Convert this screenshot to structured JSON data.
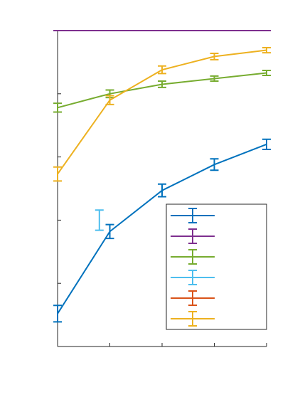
{
  "chart_data": {
    "type": "line",
    "title": "",
    "xlabel": "",
    "ylabel": "",
    "x": [
      1,
      2,
      3,
      4,
      5
    ],
    "xlim": [
      1,
      5
    ],
    "ylim": [
      0,
      5
    ],
    "grid": false,
    "legend_position": "bottom-right",
    "series": [
      {
        "color": "#0072BD",
        "x": [
          1,
          2,
          3,
          4,
          5
        ],
        "values": [
          0.52,
          1.82,
          2.47,
          2.88,
          3.2
        ],
        "errors": [
          0.13,
          0.11,
          0.1,
          0.09,
          0.08
        ]
      },
      {
        "color": "#7E2F8E",
        "x": [
          1,
          2,
          3,
          4,
          5
        ],
        "values": [
          5.0,
          5.0,
          5.0,
          5.0,
          5.0
        ],
        "errors": [
          0.0,
          0.0,
          0.0,
          0.0,
          0.0
        ]
      },
      {
        "color": "#77AC30",
        "x": [
          1,
          2,
          3,
          4,
          5
        ],
        "values": [
          3.78,
          4.0,
          4.15,
          4.24,
          4.33
        ],
        "errors": [
          0.07,
          0.06,
          0.05,
          0.04,
          0.04
        ]
      },
      {
        "color": "#4DBEEE",
        "x": [
          1.8
        ],
        "values": [
          2.0
        ],
        "errors": [
          0.16
        ]
      },
      {
        "color": "#D95319",
        "x": [],
        "values": [],
        "errors": []
      },
      {
        "color": "#EDB120",
        "x": [
          1,
          2,
          3,
          4,
          5
        ],
        "values": [
          2.73,
          3.9,
          4.38,
          4.59,
          4.69
        ],
        "errors": [
          0.11,
          0.07,
          0.06,
          0.05,
          0.04
        ]
      }
    ]
  }
}
